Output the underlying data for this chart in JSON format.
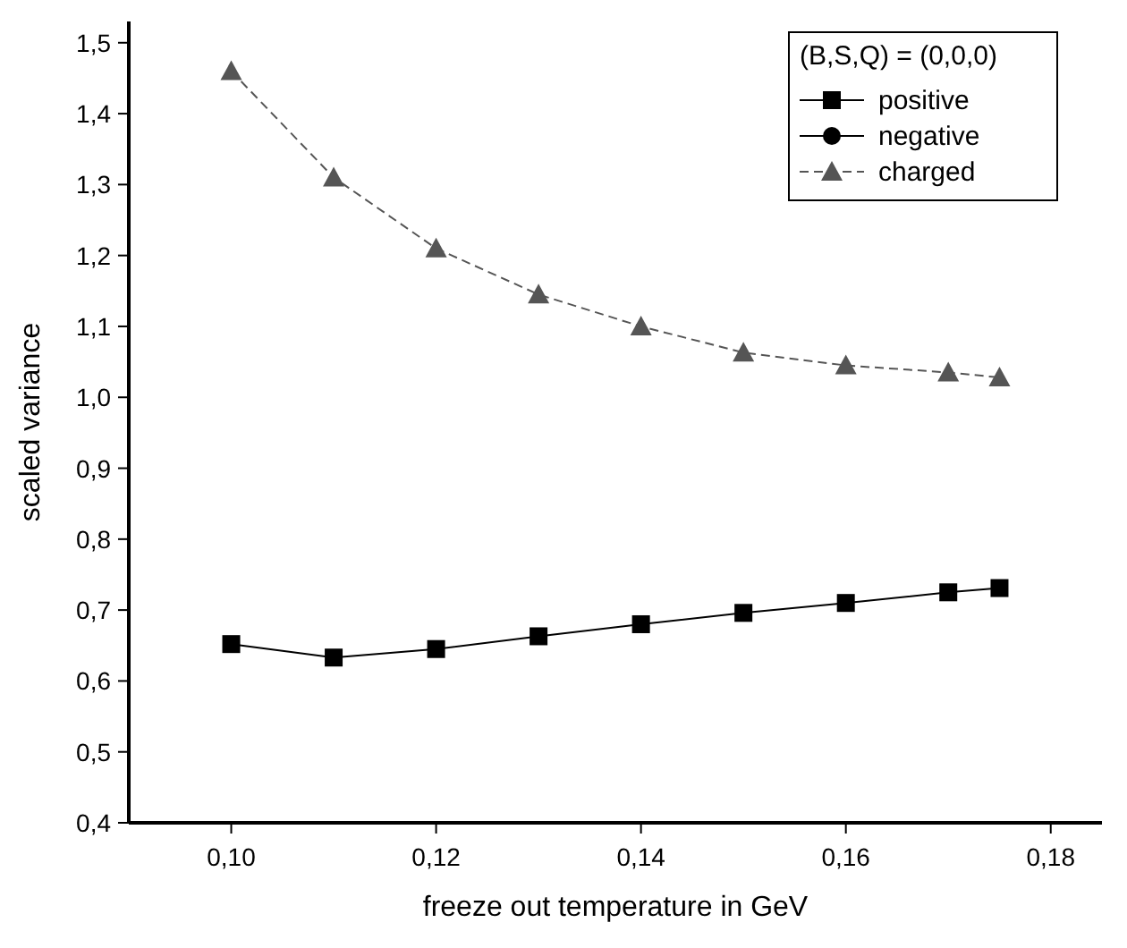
{
  "chart_data": {
    "type": "line",
    "xlabel": "freeze out temperature in GeV",
    "ylabel": "scaled variance",
    "legend_title": "(B,S,Q) = (0,0,0)",
    "legend": "top right",
    "x": [
      0.1,
      0.11,
      0.12,
      0.13,
      0.14,
      0.15,
      0.16,
      0.17,
      0.175
    ],
    "series": [
      {
        "name": "positive",
        "color": "#000000",
        "marker": "square",
        "line_style": "solid",
        "values": [
          0.652,
          0.633,
          0.645,
          0.663,
          0.68,
          0.696,
          0.71,
          0.725,
          0.731
        ]
      },
      {
        "name": "negative",
        "color": "#000000",
        "marker": "circle",
        "line_style": "solid",
        "values": [
          null,
          null,
          null,
          null,
          null,
          null,
          null,
          null,
          null
        ]
      },
      {
        "name": "charged",
        "color": "#555555",
        "marker": "triangle",
        "line_style": "dashed",
        "values": [
          1.46,
          1.31,
          1.21,
          1.145,
          1.1,
          1.063,
          1.045,
          1.035,
          1.028
        ]
      }
    ],
    "xlim": [
      0.09,
      0.185
    ],
    "ylim": [
      0.4,
      1.53
    ],
    "xticks": [
      {
        "value": 0.1,
        "label": "0,10"
      },
      {
        "value": 0.12,
        "label": "0,12"
      },
      {
        "value": 0.14,
        "label": "0,14"
      },
      {
        "value": 0.16,
        "label": "0,16"
      },
      {
        "value": 0.18,
        "label": "0,18"
      }
    ],
    "yticks": [
      {
        "value": 0.4,
        "label": "0,4"
      },
      {
        "value": 0.5,
        "label": "0,5"
      },
      {
        "value": 0.6,
        "label": "0,6"
      },
      {
        "value": 0.7,
        "label": "0,7"
      },
      {
        "value": 0.8,
        "label": "0,8"
      },
      {
        "value": 0.9,
        "label": "0,9"
      },
      {
        "value": 1.0,
        "label": "1,0"
      },
      {
        "value": 1.1,
        "label": "1,1"
      },
      {
        "value": 1.2,
        "label": "1,2"
      },
      {
        "value": 1.3,
        "label": "1,3"
      },
      {
        "value": 1.4,
        "label": "1,4"
      },
      {
        "value": 1.5,
        "label": "1,5"
      }
    ],
    "grid": false
  }
}
